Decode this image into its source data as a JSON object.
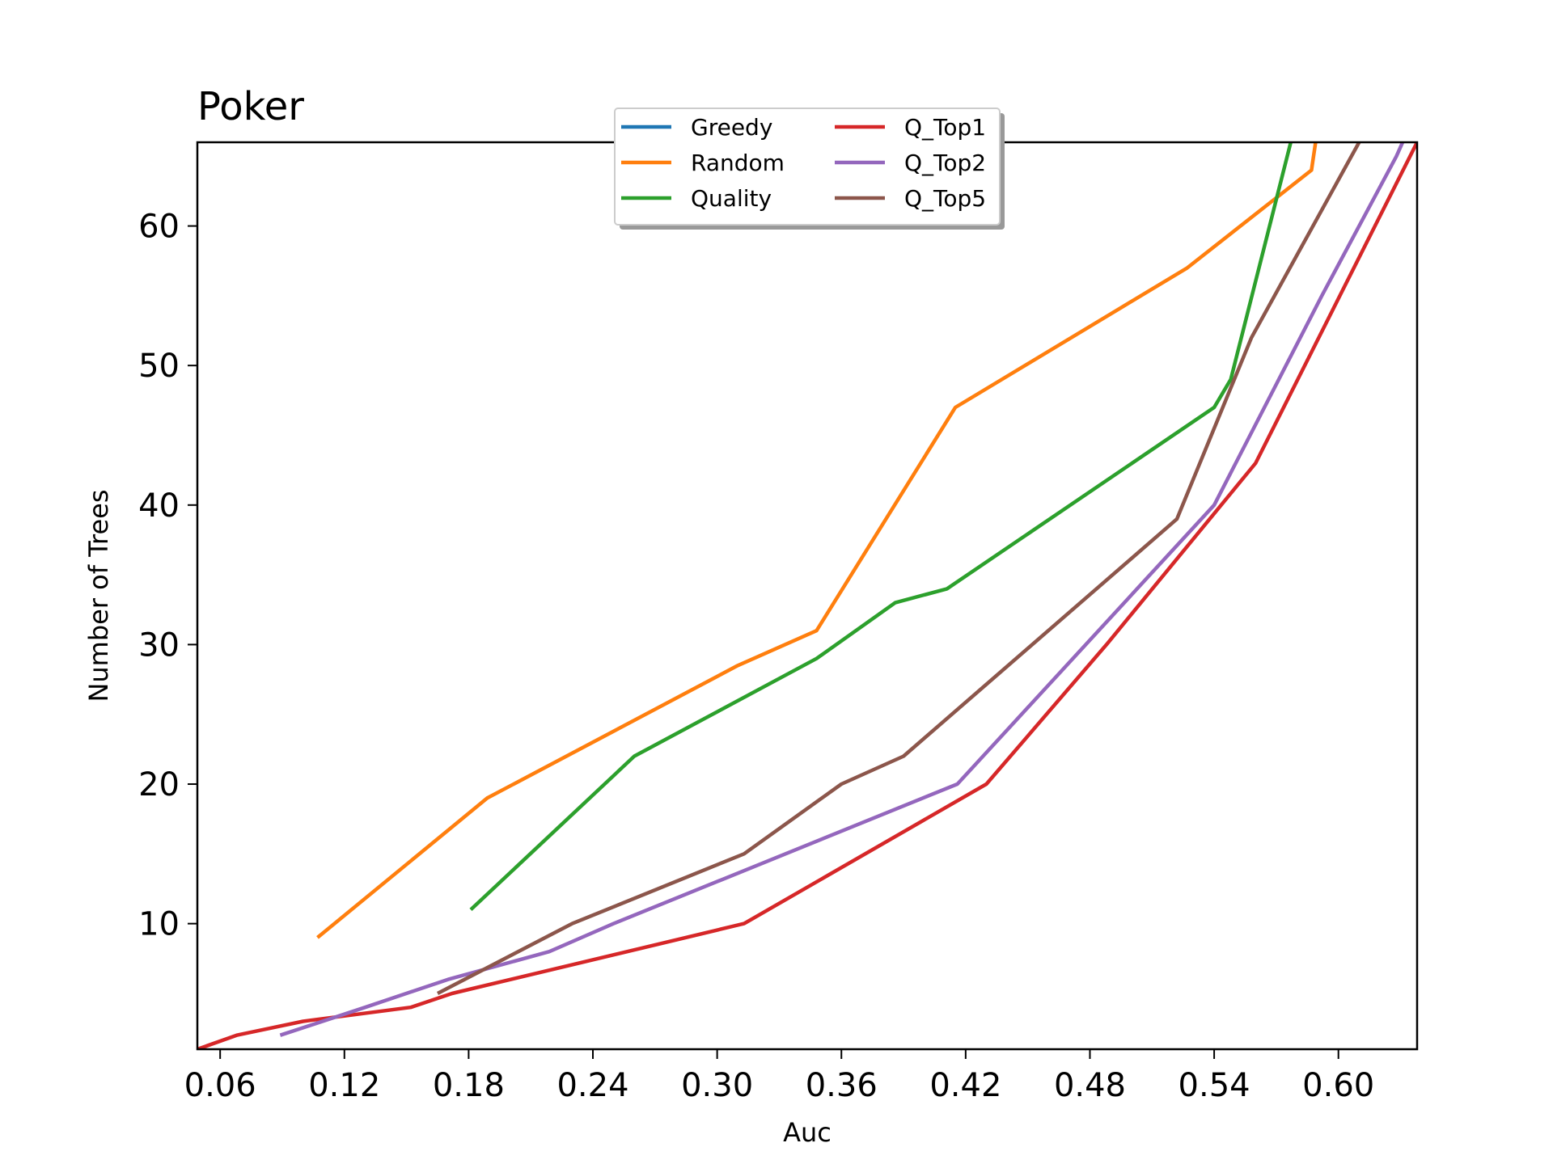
{
  "chart_data": {
    "type": "line",
    "title": "Poker",
    "xlabel": "Auc",
    "ylabel": "Number of Trees",
    "xlim": [
      0.049,
      0.638
    ],
    "ylim": [
      1,
      66
    ],
    "xticks": [
      0.06,
      0.12,
      0.18,
      0.24,
      0.3,
      0.36,
      0.42,
      0.48,
      0.54,
      0.6
    ],
    "xtick_labels": [
      "0.06",
      "0.12",
      "0.18",
      "0.24",
      "0.30",
      "0.36",
      "0.42",
      "0.48",
      "0.54",
      "0.60"
    ],
    "yticks": [
      10,
      20,
      30,
      40,
      50,
      60
    ],
    "ytick_labels": [
      "10",
      "20",
      "30",
      "40",
      "50",
      "60"
    ],
    "grid": false,
    "legend_position": "top-center",
    "legend_columns": 2,
    "series": [
      {
        "name": "Greedy",
        "color": "#1f77b4",
        "x": [],
        "y": []
      },
      {
        "name": "Random",
        "color": "#ff7f0e",
        "x": [
          0.107,
          0.189,
          0.31,
          0.348,
          0.415,
          0.527,
          0.587,
          0.589
        ],
        "y": [
          9,
          19,
          28.5,
          31,
          47,
          57,
          64,
          66
        ]
      },
      {
        "name": "Quality",
        "color": "#2ca02c",
        "x": [
          0.181,
          0.26,
          0.348,
          0.386,
          0.411,
          0.54,
          0.548,
          0.577
        ],
        "y": [
          11,
          22,
          29,
          33,
          34,
          47,
          49,
          66
        ]
      },
      {
        "name": "Q_Top1",
        "color": "#d62728",
        "x": [
          0.049,
          0.068,
          0.1,
          0.152,
          0.172,
          0.313,
          0.43,
          0.488,
          0.56,
          0.638
        ],
        "y": [
          1,
          2,
          3,
          4,
          5,
          10,
          20,
          30,
          43,
          66
        ]
      },
      {
        "name": "Q_Top2",
        "color": "#9467bd",
        "x": [
          0.089,
          0.13,
          0.17,
          0.219,
          0.25,
          0.416,
          0.54,
          0.592,
          0.628,
          0.631
        ],
        "y": [
          2,
          4,
          6,
          8,
          10,
          20,
          40,
          55,
          65,
          66
        ]
      },
      {
        "name": "Q_Top5",
        "color": "#8c564b",
        "x": [
          0.165,
          0.23,
          0.313,
          0.36,
          0.39,
          0.522,
          0.558,
          0.61
        ],
        "y": [
          5,
          10,
          15,
          20,
          22,
          39,
          52,
          66
        ]
      }
    ]
  }
}
